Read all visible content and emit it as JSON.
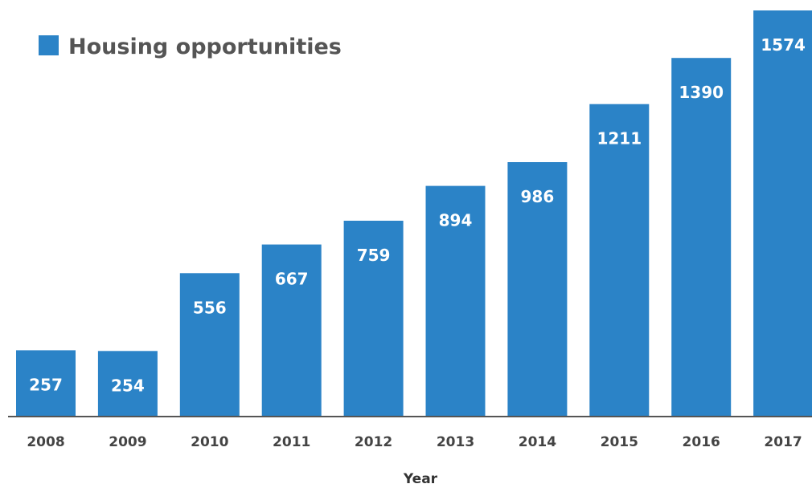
{
  "chart_data": {
    "type": "bar",
    "categories": [
      "2008",
      "2009",
      "2010",
      "2011",
      "2012",
      "2013",
      "2014",
      "2015",
      "2016",
      "2017"
    ],
    "series": [
      {
        "name": "Housing opportunities",
        "values": [
          257,
          254,
          556,
          667,
          759,
          894,
          986,
          1211,
          1390,
          1574
        ]
      }
    ],
    "title": "",
    "xlabel": "Year",
    "ylabel": "",
    "ylim": [
      0,
      1574
    ],
    "grid": false,
    "legend_position": "top-left",
    "data_labels": true
  },
  "colors": {
    "bar": "#2b83c7",
    "axis": "#555555",
    "background": "#ffffff"
  }
}
